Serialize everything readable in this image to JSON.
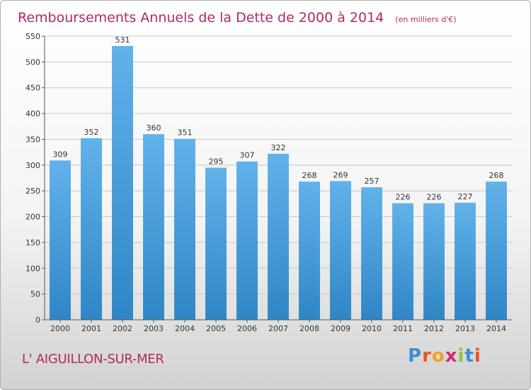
{
  "chart_data": {
    "type": "bar",
    "title": "Remboursements Annuels de la Dette de 2000 à 2014",
    "subtitle": "(en milliers d'€)",
    "categories": [
      "2000",
      "2001",
      "2002",
      "2003",
      "2004",
      "2005",
      "2006",
      "2007",
      "2008",
      "2009",
      "2010",
      "2011",
      "2012",
      "2013",
      "2014"
    ],
    "values": [
      309,
      352,
      531,
      360,
      351,
      295,
      307,
      322,
      268,
      269,
      257,
      226,
      226,
      227,
      268
    ],
    "y_ticks": [
      0,
      50,
      100,
      150,
      200,
      250,
      300,
      350,
      400,
      450,
      500,
      550
    ],
    "ylim": [
      0,
      550
    ],
    "grid": true,
    "bar_color_top": "#62b2ea",
    "bar_color_bottom": "#2f86c6"
  },
  "footer": {
    "commune": "L' AIGUILLON-SUR-MER",
    "brand_letters": [
      "P",
      "r",
      "o",
      "x",
      "i",
      "t",
      "i"
    ],
    "brand_colors": [
      "#3a8fd0",
      "#e8552a",
      "#f2a31b",
      "#d02a6b",
      "#8cc63f",
      "#3a8fd0",
      "#e8552a"
    ]
  }
}
